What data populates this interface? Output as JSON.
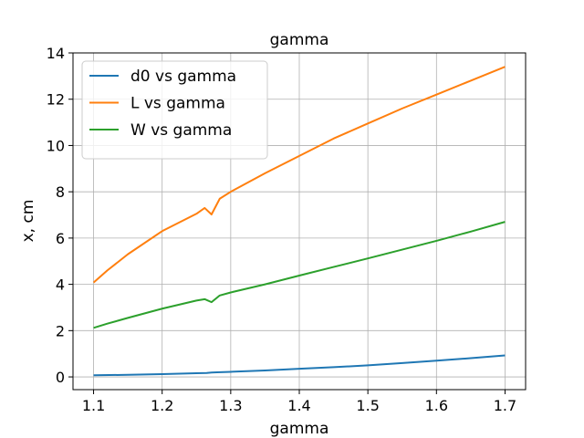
{
  "chart_data": {
    "type": "line",
    "title": "gamma",
    "xlabel": "gamma",
    "ylabel": "x, cm",
    "xlim": [
      1.07,
      1.73
    ],
    "ylim": [
      -0.55,
      14.0
    ],
    "xticks": [
      1.1,
      1.2,
      1.3,
      1.4,
      1.5,
      1.6,
      1.7
    ],
    "yticks": [
      0,
      2,
      4,
      6,
      8,
      10,
      12,
      14
    ],
    "grid": true,
    "legend_position": "upper-left",
    "series": [
      {
        "name": "d0 vs gamma",
        "color": "#1f77b4",
        "x": [
          1.1,
          1.15,
          1.2,
          1.25,
          1.265,
          1.272,
          1.28,
          1.3,
          1.35,
          1.4,
          1.45,
          1.5,
          1.55,
          1.6,
          1.65,
          1.7
        ],
        "y": [
          0.07,
          0.09,
          0.12,
          0.16,
          0.17,
          0.19,
          0.2,
          0.22,
          0.28,
          0.35,
          0.42,
          0.5,
          0.6,
          0.7,
          0.81,
          0.93
        ]
      },
      {
        "name": "L vs gamma",
        "color": "#ff7f0e",
        "x": [
          1.1,
          1.12,
          1.15,
          1.2,
          1.25,
          1.262,
          1.272,
          1.284,
          1.3,
          1.35,
          1.4,
          1.45,
          1.5,
          1.55,
          1.6,
          1.65,
          1.7
        ],
        "y": [
          4.08,
          4.6,
          5.3,
          6.3,
          7.05,
          7.3,
          7.02,
          7.7,
          8.0,
          8.8,
          9.55,
          10.3,
          10.95,
          11.6,
          12.2,
          12.8,
          13.4
        ]
      },
      {
        "name": "W vs gamma",
        "color": "#2ca02c",
        "x": [
          1.1,
          1.12,
          1.15,
          1.2,
          1.25,
          1.262,
          1.272,
          1.284,
          1.3,
          1.35,
          1.4,
          1.45,
          1.5,
          1.55,
          1.6,
          1.65,
          1.7
        ],
        "y": [
          2.12,
          2.3,
          2.55,
          2.95,
          3.3,
          3.36,
          3.23,
          3.52,
          3.65,
          4.0,
          4.38,
          4.75,
          5.12,
          5.5,
          5.88,
          6.28,
          6.7
        ]
      }
    ]
  }
}
